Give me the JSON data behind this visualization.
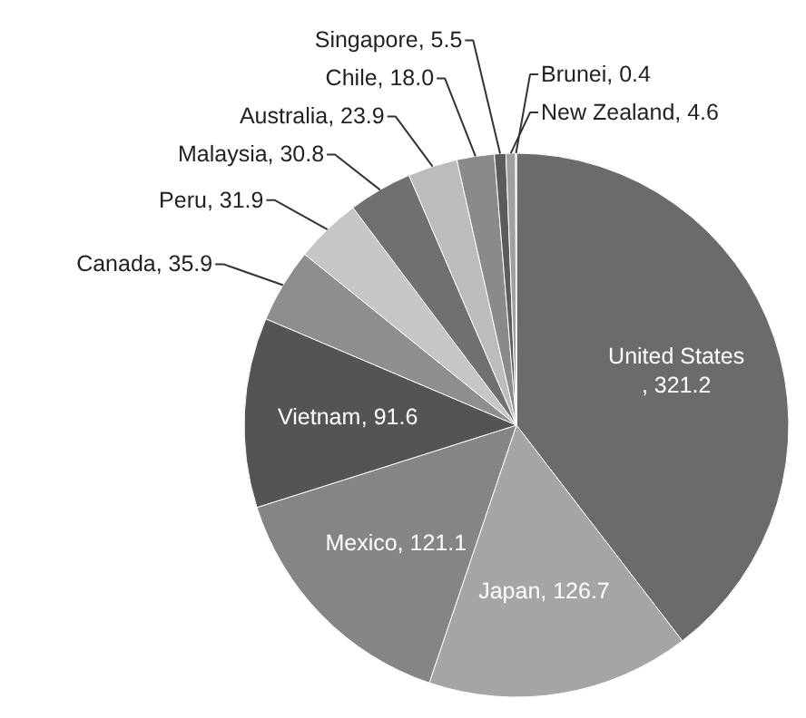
{
  "chart_data": {
    "type": "pie",
    "categories": [
      "United States",
      "Japan",
      "Mexico",
      "Vietnam",
      "Canada",
      "Peru",
      "Malaysia",
      "Australia",
      "Chile",
      "Singapore",
      "New Zealand",
      "Brunei"
    ],
    "values": [
      321.2,
      126.7,
      121.1,
      91.6,
      35.9,
      31.9,
      30.8,
      23.9,
      18.0,
      5.5,
      4.6,
      0.4
    ],
    "value_labels": [
      ", 321.2",
      ", 126.7",
      ", 121.1",
      ", 91.6",
      ", 35.9",
      ", 31.9",
      ", 30.8",
      ", 23.9",
      ", 18.0",
      ", 5.5",
      ", 4.6",
      ", 0.4"
    ],
    "data_labels": true,
    "colors": [
      "#6b6b6d",
      "#a5a5a5",
      "#858587",
      "#545456",
      "#8e8e90",
      "#c6c6c6",
      "#707072",
      "#bcbcbc",
      "#8a8a8c",
      "#5c5c5e",
      "#a0a0a0",
      "#cfcfcf"
    ],
    "legend": false
  }
}
